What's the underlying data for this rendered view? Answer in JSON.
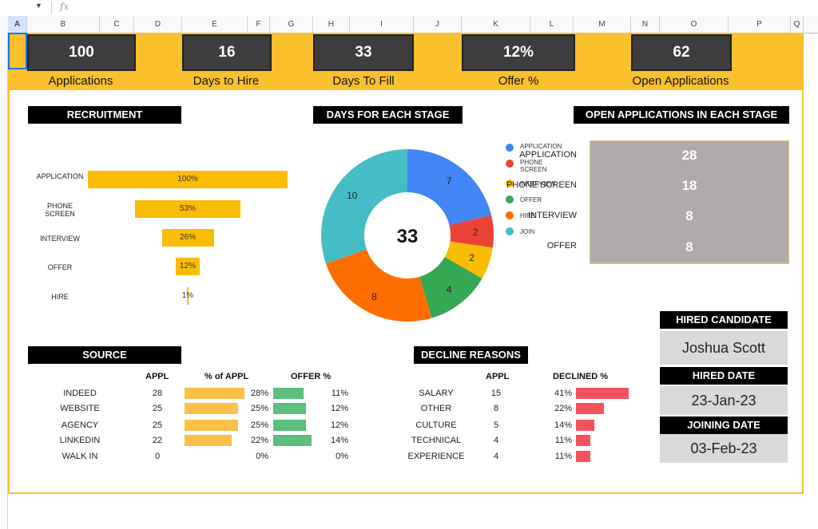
{
  "sheet": {
    "formula_icon": "fx",
    "columns": [
      "A",
      "B",
      "C",
      "D",
      "E",
      "F",
      "G",
      "H",
      "I",
      "J",
      "K",
      "L",
      "M",
      "N",
      "O",
      "P",
      "Q"
    ]
  },
  "kpis": [
    {
      "value": "100",
      "label": "Applications"
    },
    {
      "value": "16",
      "label": "Days to Hire"
    },
    {
      "value": "33",
      "label": "Days To Fill"
    },
    {
      "value": "12%",
      "label": "Offer %"
    },
    {
      "value": "62",
      "label": "Open Applications"
    }
  ],
  "recruitment": {
    "title": "RECRUITMENT",
    "stages": [
      {
        "label": "APPLICATION",
        "pct_text": "100%",
        "pct": 100
      },
      {
        "label": "PHONE SCREEN",
        "pct_text": "53%",
        "pct": 53
      },
      {
        "label": "INTERVIEW",
        "pct_text": "26%",
        "pct": 26
      },
      {
        "label": "OFFER",
        "pct_text": "12%",
        "pct": 12
      },
      {
        "label": "HIRE",
        "pct_text": "1%",
        "pct": 1
      }
    ]
  },
  "chart_data": {
    "type": "pie",
    "title": "DAYS FOR EACH STAGE",
    "center_label": "33",
    "categories": [
      "APPLICATION",
      "PHONE SCREEN",
      "INTERVIEW",
      "OFFER",
      "HIRE",
      "JOIN"
    ],
    "values": [
      7,
      2,
      2,
      4,
      8,
      10
    ],
    "colors": [
      "#4285f4",
      "#ea4335",
      "#fbbc04",
      "#34a853",
      "#ff6d01",
      "#46bdc6"
    ],
    "legend": "right"
  },
  "open_apps": {
    "title": "OPEN APPLICATIONS IN EACH STAGE",
    "rows": [
      {
        "label": "APPLICATION",
        "value": "28"
      },
      {
        "label": "PHONE SCREEN",
        "value": "18"
      },
      {
        "label": "INTERVIEW",
        "value": "8"
      },
      {
        "label": "OFFER",
        "value": "8"
      }
    ]
  },
  "source": {
    "title": "SOURCE",
    "headers": {
      "appl": "APPL",
      "pct": "% of APPL",
      "offer": "OFFER %"
    },
    "rows": [
      {
        "name": "INDEED",
        "appl": "28",
        "pct_text": "28%",
        "pct": 28,
        "offer_text": "11%",
        "offer": 11
      },
      {
        "name": "WEBSITE",
        "appl": "25",
        "pct_text": "25%",
        "pct": 25,
        "offer_text": "12%",
        "offer": 12
      },
      {
        "name": "AGENCY",
        "appl": "25",
        "pct_text": "25%",
        "pct": 25,
        "offer_text": "12%",
        "offer": 12
      },
      {
        "name": "LINKEDIN",
        "appl": "22",
        "pct_text": "22%",
        "pct": 22,
        "offer_text": "14%",
        "offer": 14
      },
      {
        "name": "WALK IN",
        "appl": "0",
        "pct_text": "0%",
        "pct": 0,
        "offer_text": "0%",
        "offer": 0
      }
    ]
  },
  "decline": {
    "title": "DECLINE REASONS",
    "headers": {
      "appl": "APPL",
      "pct": "DECLINED %"
    },
    "rows": [
      {
        "name": "SALARY",
        "appl": "15",
        "pct_text": "41%",
        "pct": 41
      },
      {
        "name": "OTHER",
        "appl": "8",
        "pct_text": "22%",
        "pct": 22
      },
      {
        "name": "CULTURE",
        "appl": "5",
        "pct_text": "14%",
        "pct": 14
      },
      {
        "name": "TECHNICAL",
        "appl": "4",
        "pct_text": "11%",
        "pct": 11
      },
      {
        "name": "EXPERIENCE",
        "appl": "4",
        "pct_text": "11%",
        "pct": 11
      }
    ]
  },
  "hired": {
    "candidate_title": "HIRED CANDIDATE",
    "candidate": "Joshua Scott",
    "date_title": "HIRED DATE",
    "date": "23-Jan-23",
    "joining_title": "JOINING DATE",
    "joining": "03-Feb-23"
  }
}
